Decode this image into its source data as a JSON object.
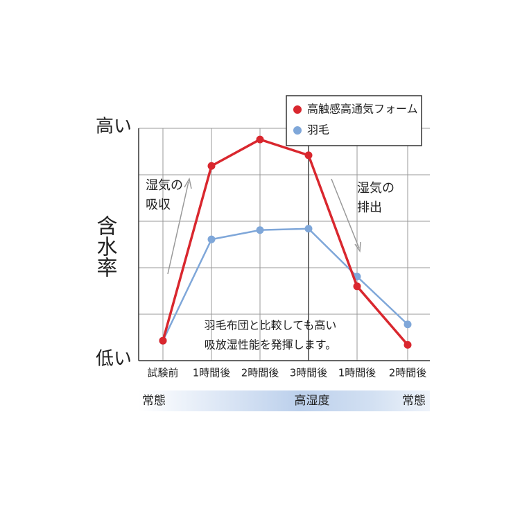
{
  "chart_data": {
    "type": "line",
    "y_label": "含水率",
    "categories": [
      "試験前",
      "1時間後",
      "2時間後",
      "3時間後",
      "1時間後",
      "2時間後"
    ],
    "series": [
      {
        "name": "高触感高通気フォーム",
        "color": "#d9272e",
        "values": [
          0.43,
          4.19,
          4.76,
          4.42,
          1.6,
          0.34
        ]
      },
      {
        "name": "羽毛",
        "color": "#7fa7d9",
        "values": [
          0.43,
          2.61,
          2.81,
          2.84,
          1.81,
          0.78
        ]
      }
    ],
    "ylim": [
      0,
      5
    ],
    "yticks": [
      {
        "value": 0,
        "label": "低い"
      },
      {
        "value": 1,
        "label": null
      },
      {
        "value": 2,
        "label": null
      },
      {
        "value": 3,
        "label": null
      },
      {
        "value": 4,
        "label": null
      },
      {
        "value": 5,
        "label": "高い"
      }
    ],
    "grid": true,
    "annotations": [
      [
        "湿気の",
        "吸収"
      ],
      [
        "湿気の",
        "排出"
      ],
      [
        "羽毛布団と比較しても高い",
        "吸放湿性能を発揮します。"
      ]
    ],
    "conditions": [
      "常態",
      "高湿度",
      "常態"
    ]
  }
}
